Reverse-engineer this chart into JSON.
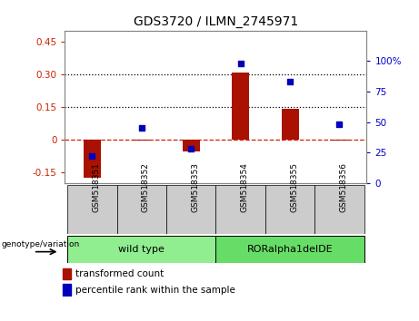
{
  "title": "GDS3720 / ILMN_2745971",
  "categories": [
    "GSM518351",
    "GSM518352",
    "GSM518353",
    "GSM518354",
    "GSM518355",
    "GSM518356"
  ],
  "red_values": [
    -0.175,
    -0.005,
    -0.055,
    0.305,
    0.14,
    -0.005
  ],
  "blue_values_pct": [
    22,
    45,
    28,
    98,
    83,
    48
  ],
  "groups": [
    {
      "label": "wild type",
      "indices": [
        0,
        1,
        2
      ],
      "color": "#90EE90"
    },
    {
      "label": "RORalpha1delDE",
      "indices": [
        3,
        4,
        5
      ],
      "color": "#66DD66"
    }
  ],
  "ylim_left": [
    -0.2,
    0.5
  ],
  "ylim_right": [
    0,
    125
  ],
  "yticks_left": [
    -0.15,
    0.0,
    0.15,
    0.3,
    0.45
  ],
  "yticks_right": [
    0,
    25,
    50,
    75,
    100
  ],
  "ytick_labels_left": [
    "-0.15",
    "0",
    "0.15",
    "0.30",
    "0.45"
  ],
  "ytick_labels_right": [
    "0",
    "25",
    "50",
    "75",
    "100%"
  ],
  "hlines": [
    0.15,
    0.3
  ],
  "bar_width": 0.35,
  "red_color": "#AA1100",
  "blue_color": "#0000BB",
  "dashed_line_color": "#CC2200",
  "dot_line_color": "#000000",
  "left_axis_color": "#CC2200",
  "right_axis_color": "#0000CC",
  "legend_items": [
    "transformed count",
    "percentile rank within the sample"
  ],
  "group_label": "genotype/variation",
  "tick_area_color": "#CCCCCC",
  "spine_color": "#888888"
}
